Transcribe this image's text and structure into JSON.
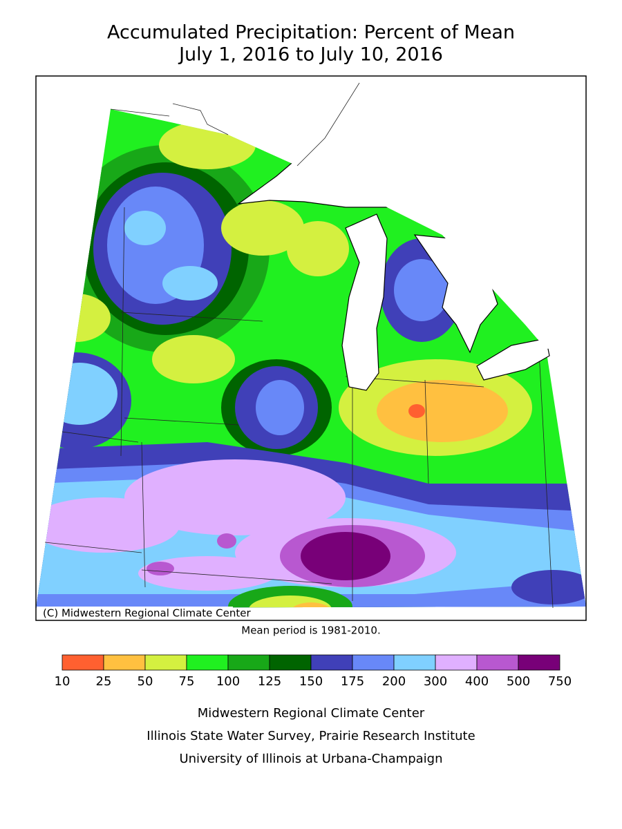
{
  "title": [
    "Accumulated Precipitation: Percent of Mean",
    "July 1, 2016 to July 10, 2016"
  ],
  "map": {
    "credit": "(C) Midwestern Regional Climate Center"
  },
  "note": "Mean period is 1981-2010.",
  "legend": {
    "breaks": [
      10,
      25,
      50,
      75,
      100,
      125,
      150,
      175,
      200,
      300,
      400,
      500,
      750
    ],
    "colors": [
      "#ff6030",
      "#ffc040",
      "#d4f040",
      "#20f020",
      "#18a818",
      "#006400",
      "#4040b8",
      "#6888f8",
      "#80d0ff",
      "#e0b0ff",
      "#b858d0",
      "#780078"
    ]
  },
  "footer": [
    "Midwestern Regional Climate Center",
    "Illinois State Water Survey, Prairie Research Institute",
    "University of Illinois at Urbana-Champaign"
  ]
}
